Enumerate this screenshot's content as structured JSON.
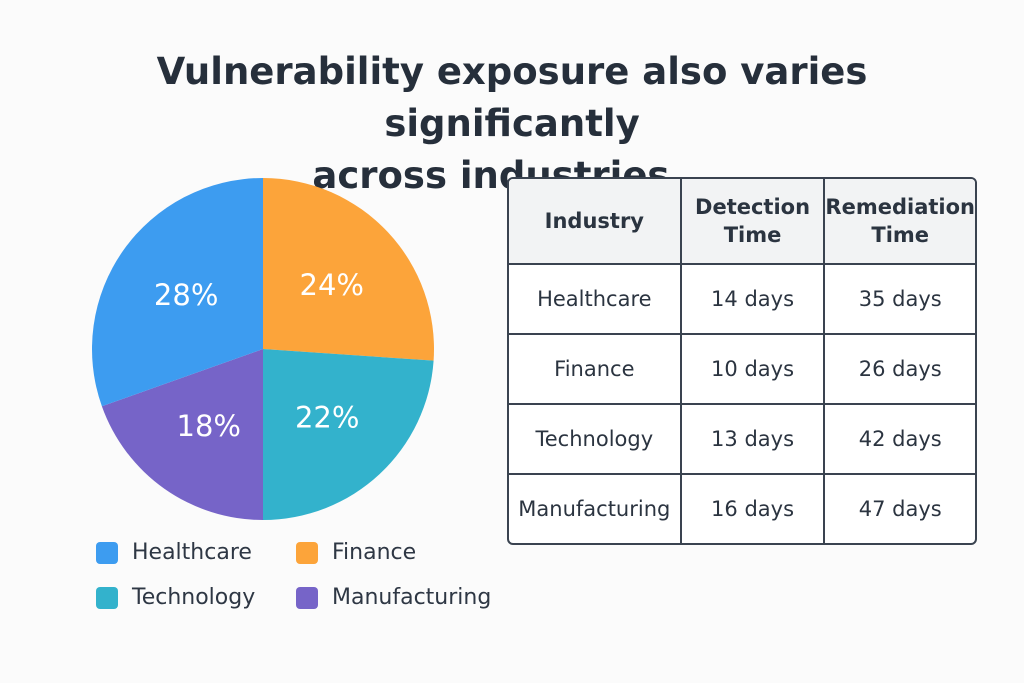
{
  "title_line1": "Vulnerability exposure also varies significantly",
  "title_line2": "across industries...",
  "chart_data": {
    "type": "pie",
    "slices": [
      {
        "label": "Healthcare",
        "value": 28,
        "display": "28%",
        "color": "#3d9cf0"
      },
      {
        "label": "Finance",
        "value": 24,
        "display": "24%",
        "color": "#fca43a"
      },
      {
        "label": "Technology",
        "value": 22,
        "display": "22%",
        "color": "#33b2cc"
      },
      {
        "label": "Manufacturing",
        "value": 18,
        "display": "18%",
        "color": "#7664c8"
      }
    ],
    "legend": [
      "Healthcare",
      "Finance",
      "Technology",
      "Manufacturing"
    ],
    "legend_position": "bottom"
  },
  "table": {
    "headers": [
      "Industry",
      "Detection\nTime",
      "Remediation\nTime"
    ],
    "rows": [
      [
        "Healthcare",
        "14 days",
        "35 days"
      ],
      [
        "Finance",
        "10 days",
        "26 days"
      ],
      [
        "Technology",
        "13 days",
        "42 days"
      ],
      [
        "Manufacturing",
        "16 days",
        "47 days"
      ]
    ]
  }
}
